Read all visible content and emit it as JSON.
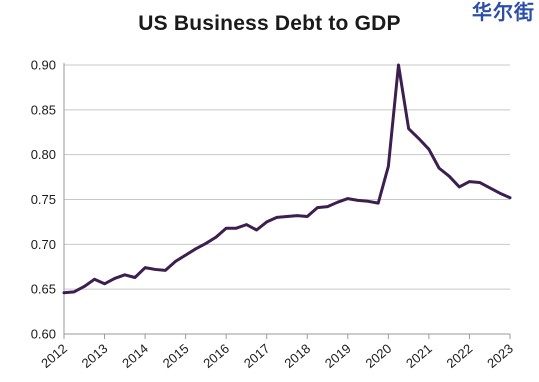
{
  "watermark": "华尔街",
  "chart_data": {
    "type": "line",
    "title": "US Business Debt to GDP",
    "xlabel": "",
    "ylabel": "",
    "ylim": [
      0.6,
      0.9
    ],
    "xlim": [
      2012,
      2023
    ],
    "y_ticks": [
      "0.60",
      "0.65",
      "0.70",
      "0.75",
      "0.80",
      "0.85",
      "0.90"
    ],
    "x_ticks": [
      "2012",
      "2013",
      "2014",
      "2015",
      "2016",
      "2017",
      "2018",
      "2019",
      "2020",
      "2021",
      "2022",
      "2023"
    ],
    "grid": "horizontal",
    "line_color": "#3d1f4f",
    "series": [
      {
        "x": [
          2012.0,
          2012.25,
          2012.5,
          2012.75,
          2013.0,
          2013.25,
          2013.5,
          2013.75,
          2014.0,
          2014.25,
          2014.5,
          2014.75,
          2015.0,
          2015.25,
          2015.5,
          2015.75,
          2016.0,
          2016.25,
          2016.5,
          2016.75,
          2017.0,
          2017.25,
          2017.5,
          2017.75,
          2018.0,
          2018.25,
          2018.5,
          2018.75,
          2019.0,
          2019.25,
          2019.5,
          2019.75,
          2020.0,
          2020.25,
          2020.5,
          2020.75,
          2021.0,
          2021.25,
          2021.5,
          2021.75,
          2022.0,
          2022.25,
          2022.5,
          2022.75,
          2023.0
        ],
        "values": [
          0.646,
          0.647,
          0.653,
          0.661,
          0.656,
          0.662,
          0.666,
          0.663,
          0.674,
          0.672,
          0.671,
          0.681,
          0.688,
          0.695,
          0.701,
          0.708,
          0.718,
          0.718,
          0.722,
          0.716,
          0.725,
          0.73,
          0.731,
          0.732,
          0.731,
          0.741,
          0.742,
          0.747,
          0.751,
          0.749,
          0.748,
          0.746,
          0.787,
          0.9,
          0.829,
          0.818,
          0.806,
          0.785,
          0.776,
          0.764,
          0.77,
          0.769,
          0.763,
          0.757,
          0.752
        ]
      }
    ]
  }
}
